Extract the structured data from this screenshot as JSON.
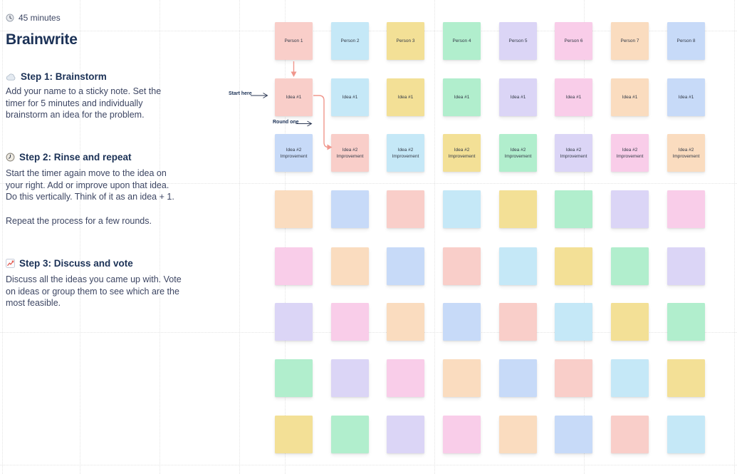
{
  "panel": {
    "timer": {
      "icon": "clock-icon",
      "label": "45 minutes"
    },
    "title": "Brainwrite",
    "steps": [
      {
        "icon": "cloud-icon",
        "heading": "Step 1: Brainstorm",
        "body": "Add your name to a sticky note. Set the\ntimer for 5 minutes and individually\nbrainstorm an idea for the problem."
      },
      {
        "icon": "clock-icon",
        "heading": "Step 2: Rinse and repeat",
        "body": "Start the timer again move to the idea on\nyour right. Add or improve upon that idea.\nDo this vertically. Think of it as an idea + 1.",
        "body2": "Repeat the process for a few rounds."
      },
      {
        "icon": "chart-increasing-icon",
        "heading": "Step 3: Discuss and vote",
        "body": "Discuss all the ideas you came up with. Vote\non ideas or group them to see which are the\nmost feasible."
      }
    ]
  },
  "canvas": {
    "flow_labels": {
      "start_here": "Start here",
      "round_one": "Round one"
    },
    "colors": {
      "palette": {
        "salmon": "#F9CEC9",
        "cyan": "#C5E8F7",
        "yellow": "#F3E096",
        "mint": "#B1EECD",
        "lavender": "#DBD5F6",
        "pink": "#F9CDE9",
        "peach": "#FADCBF",
        "periwinkle": "#C7DAF8"
      },
      "connector_arrow": "#F0968C",
      "label_arrow": "#2E3A55",
      "heading_text": "#1B3156",
      "body_text": "#3D4663",
      "note_text": "#333A47",
      "grid_line": "#CFCFCF"
    },
    "sticky_grid": {
      "rows": [
        {
          "name": "persons",
          "labels": [
            "Person 1",
            "Person 2",
            "Person 3",
            "Person 4",
            "Person 5",
            "Person 6",
            "Person 7",
            "Person 8"
          ],
          "colors": [
            "salmon",
            "cyan",
            "yellow",
            "mint",
            "lavender",
            "pink",
            "peach",
            "periwinkle"
          ]
        },
        {
          "name": "idea-1",
          "labels": [
            "Idea #1",
            "Idea #1",
            "Idea #1",
            "Idea #1",
            "Idea #1",
            "Idea #1",
            "Idea #1",
            "Idea #1"
          ],
          "colors": [
            "salmon",
            "cyan",
            "yellow",
            "mint",
            "lavender",
            "pink",
            "peach",
            "periwinkle"
          ]
        },
        {
          "name": "idea-2-improvement",
          "labels": [
            "Idea #2\nImprovement",
            "Idea #2\nImprovement",
            "Idea #2\nImprovement",
            "Idea #2\nImprovement",
            "Idea #2\nImprovement",
            "Idea #2\nImprovement",
            "Idea #2\nImprovement",
            "Idea #2\nImprovement"
          ],
          "colors": [
            "periwinkle",
            "salmon",
            "cyan",
            "yellow",
            "mint",
            "lavender",
            "pink",
            "peach"
          ]
        },
        {
          "name": "round-2-blank",
          "labels": [
            "",
            "",
            "",
            "",
            "",
            "",
            "",
            ""
          ],
          "colors": [
            "peach",
            "periwinkle",
            "salmon",
            "cyan",
            "yellow",
            "mint",
            "lavender",
            "pink"
          ]
        },
        {
          "name": "round-3-blank",
          "labels": [
            "",
            "",
            "",
            "",
            "",
            "",
            "",
            ""
          ],
          "colors": [
            "pink",
            "peach",
            "periwinkle",
            "salmon",
            "cyan",
            "yellow",
            "mint",
            "lavender"
          ]
        },
        {
          "name": "round-4-blank",
          "labels": [
            "",
            "",
            "",
            "",
            "",
            "",
            "",
            ""
          ],
          "colors": [
            "lavender",
            "pink",
            "peach",
            "periwinkle",
            "salmon",
            "cyan",
            "yellow",
            "mint"
          ]
        },
        {
          "name": "round-5-blank",
          "labels": [
            "",
            "",
            "",
            "",
            "",
            "",
            "",
            ""
          ],
          "colors": [
            "mint",
            "lavender",
            "pink",
            "peach",
            "periwinkle",
            "salmon",
            "cyan",
            "yellow"
          ]
        },
        {
          "name": "round-6-blank",
          "labels": [
            "",
            "",
            "",
            "",
            "",
            "",
            "",
            ""
          ],
          "colors": [
            "yellow",
            "mint",
            "lavender",
            "pink",
            "peach",
            "periwinkle",
            "salmon",
            "cyan"
          ]
        }
      ]
    }
  }
}
